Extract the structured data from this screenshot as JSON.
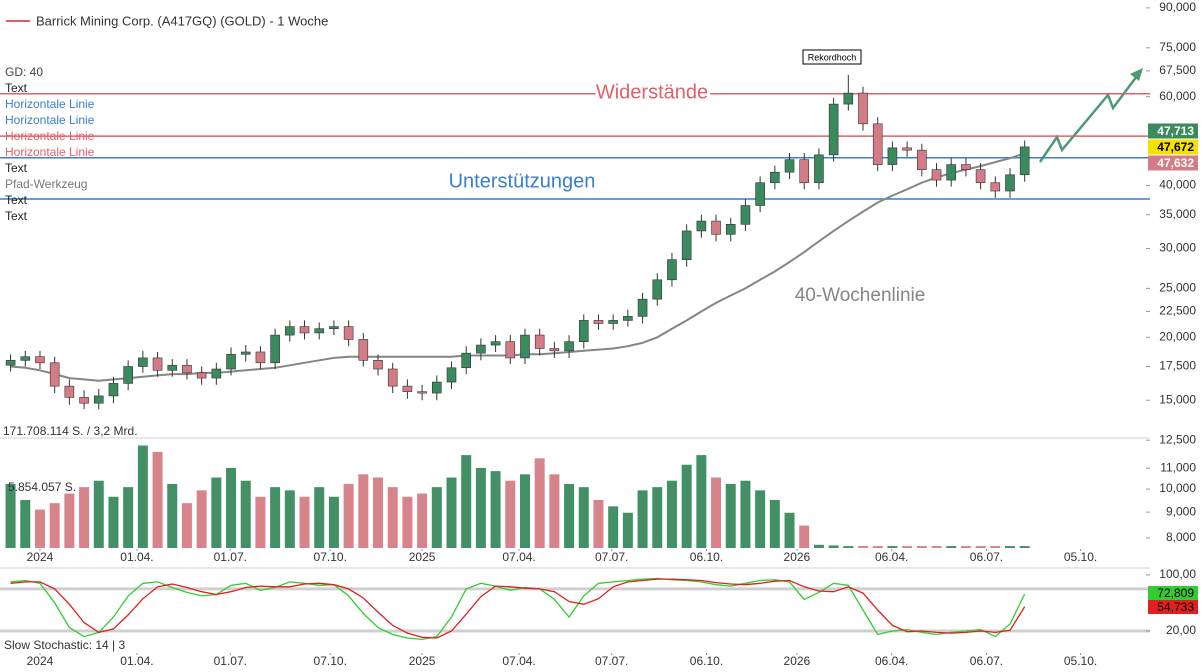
{
  "chart_data": {
    "type": "candlestick",
    "title": "Barrick Mining Corp. (A417GQ) (GOLD) - 1 Woche",
    "title_color": "#d9606a",
    "log_scale": true,
    "grid": false,
    "up_color": "#3a8a5e",
    "down_color": "#d47c86",
    "x": [
      -4,
      -2,
      0,
      2,
      4,
      6,
      8,
      10,
      12,
      14,
      16,
      18,
      20,
      22,
      24,
      26,
      28,
      30,
      32,
      34,
      36,
      38,
      40,
      42,
      44,
      46,
      48,
      50,
      52,
      54,
      56,
      58,
      60,
      62,
      64,
      66,
      68,
      70,
      72,
      74,
      76,
      78,
      80,
      82,
      84,
      86,
      88,
      90,
      92,
      94,
      96,
      98,
      100,
      102,
      104,
      106,
      108,
      110,
      112,
      114,
      116,
      118,
      120,
      122,
      124,
      126,
      128,
      130,
      132,
      134
    ],
    "open": [
      17600,
      18000,
      18300,
      17800,
      16000,
      15200,
      14800,
      15300,
      16200,
      17500,
      18200,
      17200,
      17600,
      17000,
      16600,
      17300,
      18500,
      18700,
      17800,
      20200,
      21000,
      20400,
      20800,
      21000,
      19800,
      18000,
      17300,
      16000,
      15600,
      15500,
      16300,
      17400,
      18600,
      19300,
      19600,
      18200,
      20200,
      19000,
      18800,
      19600,
      21600,
      21300,
      21600,
      22000,
      23800,
      26000,
      28500,
      32500,
      34000,
      32000,
      33500,
      36500,
      40500,
      42500,
      45000,
      40500,
      46000,
      58000,
      61000,
      53000,
      44000,
      47500,
      47000,
      43000,
      41000,
      44000,
      43000,
      40500,
      39000,
      42000
    ],
    "high": [
      18500,
      18800,
      18800,
      18300,
      16500,
      15700,
      15800,
      16700,
      18000,
      18800,
      18700,
      18100,
      18100,
      17500,
      17800,
      19100,
      19300,
      19200,
      20800,
      21600,
      21600,
      21400,
      21600,
      21600,
      20400,
      18500,
      17800,
      16500,
      16100,
      16800,
      17900,
      19200,
      19900,
      20200,
      20200,
      20800,
      20800,
      19600,
      20200,
      22200,
      22200,
      22200,
      22700,
      24500,
      26800,
      29400,
      33500,
      35000,
      35000,
      34500,
      37600,
      41700,
      43800,
      46400,
      46400,
      47400,
      59700,
      66300,
      62800,
      54600,
      48900,
      48900,
      48400,
      44300,
      45300,
      45300,
      44300,
      41700,
      43300,
      49100
    ],
    "low": [
      17100,
      17500,
      17300,
      15500,
      14700,
      14400,
      14400,
      14800,
      15700,
      17000,
      16700,
      16700,
      16500,
      16100,
      16100,
      16800,
      17900,
      17300,
      17300,
      19600,
      19800,
      19800,
      20200,
      19200,
      17500,
      16800,
      15500,
      15100,
      15000,
      15000,
      15800,
      16900,
      18000,
      18700,
      17700,
      17700,
      18400,
      18200,
      18200,
      19000,
      20700,
      20700,
      21000,
      21300,
      23100,
      25200,
      27600,
      31500,
      31000,
      31000,
      32500,
      35400,
      39300,
      41200,
      39300,
      39300,
      44600,
      56300,
      51400,
      42700,
      42700,
      45600,
      41700,
      39800,
      39800,
      41700,
      39300,
      37800,
      37800,
      40700
    ],
    "close": [
      18000,
      18300,
      17800,
      16000,
      15200,
      14800,
      15300,
      16200,
      17500,
      18200,
      17200,
      17600,
      17000,
      16600,
      17300,
      18500,
      18700,
      17800,
      20200,
      21000,
      20400,
      20800,
      21000,
      19800,
      18000,
      17300,
      16000,
      15600,
      15500,
      16300,
      17400,
      18600,
      19300,
      19600,
      18200,
      20200,
      19000,
      18800,
      19600,
      21600,
      21300,
      21600,
      22000,
      23800,
      26000,
      28500,
      32500,
      34000,
      32000,
      33500,
      36500,
      40500,
      42500,
      45000,
      40500,
      46000,
      58000,
      61000,
      53000,
      44000,
      47500,
      47000,
      43000,
      41000,
      44000,
      43000,
      40500,
      39000,
      42000,
      47700
    ],
    "xlim": [
      -5.44,
      150.1
    ],
    "ylim": [
      7640,
      93300
    ],
    "yticks": [
      {
        "value": 90000,
        "label": "90,000"
      },
      {
        "value": 75000,
        "label": "75,000"
      },
      {
        "value": 67500,
        "label": "67,500"
      },
      {
        "value": 60000,
        "label": "60,000"
      },
      {
        "value": 40000,
        "label": "40,000"
      },
      {
        "value": 35000,
        "label": "35,000"
      },
      {
        "value": 30000,
        "label": "30,000"
      },
      {
        "value": 25000,
        "label": "25,000"
      },
      {
        "value": 22500,
        "label": "22,500"
      },
      {
        "value": 20000,
        "label": "20,000"
      },
      {
        "value": 17500,
        "label": "17,500"
      },
      {
        "value": 15000,
        "label": "15,000"
      },
      {
        "value": 12500,
        "label": "12,500"
      },
      {
        "value": 11000,
        "label": "11,000"
      },
      {
        "value": 10000,
        "label": "10,000"
      },
      {
        "value": 9000,
        "label": "9,000"
      },
      {
        "value": 8000,
        "label": "8,000"
      }
    ],
    "xticks": [
      {
        "value": 0,
        "label": "2024"
      },
      {
        "value": 13.2,
        "label": "01.04."
      },
      {
        "value": 25.9,
        "label": "01.07."
      },
      {
        "value": 39.5,
        "label": "07.10."
      },
      {
        "value": 52,
        "label": "2025"
      },
      {
        "value": 65.2,
        "label": "07.04."
      },
      {
        "value": 77.8,
        "label": "07.07."
      },
      {
        "value": 90.7,
        "label": "06.10."
      },
      {
        "value": 103,
        "label": "2026"
      },
      {
        "value": 115.9,
        "label": "06.04."
      },
      {
        "value": 128.8,
        "label": "06.07."
      },
      {
        "value": 141.6,
        "label": "05.10."
      }
    ],
    "ma": {
      "name": "GD: 40",
      "color": "#858585",
      "values": [
        17500,
        17400,
        17200,
        16900,
        16600,
        16500,
        16400,
        16500,
        16600,
        16700,
        16800,
        16900,
        16900,
        17000,
        17000,
        17100,
        17200,
        17300,
        17400,
        17600,
        17800,
        18000,
        18200,
        18300,
        18300,
        18300,
        18300,
        18300,
        18300,
        18300,
        18300,
        18400,
        18400,
        18400,
        18400,
        18500,
        18500,
        18600,
        18700,
        18800,
        18900,
        19000,
        19200,
        19500,
        20000,
        20800,
        21600,
        22500,
        23400,
        24200,
        25000,
        26000,
        27000,
        28200,
        29500,
        31000,
        32500,
        34000,
        35500,
        37000,
        38200,
        39300,
        40500,
        41500,
        42300,
        43000,
        43700,
        44500,
        45300,
        46300
      ]
    },
    "hlines": [
      {
        "value": 60800,
        "color": "#e0606a"
      },
      {
        "value": 50100,
        "color": "#e0606a"
      },
      {
        "value": 45400,
        "color": "#3a7fc8"
      },
      {
        "value": 37600,
        "color": "#3a7fc8"
      }
    ],
    "price_labels": [
      {
        "value": 47713,
        "label": "47,713",
        "color": "#3a8a5e",
        "text_color": "#ffffff"
      },
      {
        "value": 47672,
        "label": "47,672",
        "color": "#f5e000",
        "text_color": "#000000"
      },
      {
        "value": 47632,
        "label": "47,632",
        "color": "#d47c86",
        "text_color": "#ffffff"
      }
    ],
    "annotations": [
      {
        "text": "Rekordhoch",
        "color": "#000000"
      },
      {
        "text": "Widerstände",
        "color": "#e0606a"
      },
      {
        "text": "Unterstützungen",
        "color": "#3a7fc8"
      },
      {
        "text": "40-Wochenlinie",
        "color": "#858585"
      }
    ],
    "tools": [
      {
        "name": "Text",
        "color": "#222222"
      },
      {
        "name": "Horizontale Linie",
        "color": "#3a7fc8"
      },
      {
        "name": "Horizontale Linie",
        "color": "#3a7fc8"
      },
      {
        "name": "Horizontale Linie",
        "color": "#e0606a"
      },
      {
        "name": "Horizontale Linie",
        "color": "#e0606a"
      },
      {
        "name": "Text",
        "color": "#222222"
      },
      {
        "name": "Pfad-Werkzeug",
        "color": "#777777"
      },
      {
        "name": "Text",
        "color": "#222222"
      },
      {
        "name": "Text",
        "color": "#222222"
      }
    ],
    "volume": {
      "label": "171.708.114 S. / 3,2 Mrd.",
      "last_label": "5.854.057 S.",
      "lim": [
        0,
        171.7
      ],
      "values": [
        100,
        75,
        60,
        70,
        85,
        95,
        105,
        80,
        95,
        160,
        150,
        100,
        70,
        90,
        110,
        125,
        105,
        80,
        95,
        90,
        80,
        95,
        80,
        100,
        115,
        110,
        95,
        80,
        85,
        95,
        110,
        145,
        125,
        120,
        105,
        115,
        140,
        115,
        100,
        95,
        75,
        65,
        55,
        90,
        95,
        105,
        130,
        145,
        110,
        100,
        105,
        90,
        75,
        55,
        35,
        5,
        4,
        3,
        3,
        3,
        3,
        3,
        3,
        3,
        3,
        3,
        3,
        3,
        3,
        3
      ]
    },
    "stochastic": {
      "name": "Slow Stochastic: 14 | 3",
      "ylim": [
        0,
        107
      ],
      "yticks": [
        {
          "value": 100,
          "label": "100,00"
        },
        {
          "value": 20,
          "label": "20,00"
        }
      ],
      "levels": [
        80,
        20
      ],
      "series": [
        {
          "color": "#33cc33",
          "value_label": "72,809",
          "values": [
            90,
            92,
            88,
            60,
            25,
            12,
            18,
            40,
            70,
            88,
            90,
            82,
            75,
            70,
            72,
            85,
            88,
            78,
            82,
            90,
            88,
            85,
            86,
            70,
            45,
            25,
            15,
            10,
            8,
            12,
            40,
            80,
            88,
            84,
            78,
            82,
            80,
            65,
            40,
            70,
            88,
            90,
            92,
            94,
            95,
            93,
            92,
            90,
            86,
            84,
            88,
            92,
            93,
            90,
            65,
            75,
            88,
            85,
            50,
            15,
            20,
            22,
            18,
            15,
            18,
            20,
            22,
            12,
            30,
            72.809
          ]
        },
        {
          "color": "#e02020",
          "value_label": "54,733",
          "values": [
            88,
            90,
            90,
            80,
            58,
            32,
            18,
            23,
            43,
            66,
            83,
            87,
            82,
            76,
            72,
            76,
            82,
            84,
            83,
            83,
            87,
            88,
            86,
            80,
            67,
            47,
            28,
            17,
            11,
            10,
            20,
            44,
            69,
            84,
            83,
            81,
            80,
            76,
            62,
            58,
            66,
            83,
            90,
            92,
            94,
            94,
            93,
            92,
            89,
            87,
            86,
            88,
            91,
            92,
            83,
            77,
            76,
            83,
            74,
            50,
            28,
            19,
            20,
            18,
            17,
            18,
            20,
            18,
            21,
            54.733
          ]
        }
      ]
    }
  }
}
